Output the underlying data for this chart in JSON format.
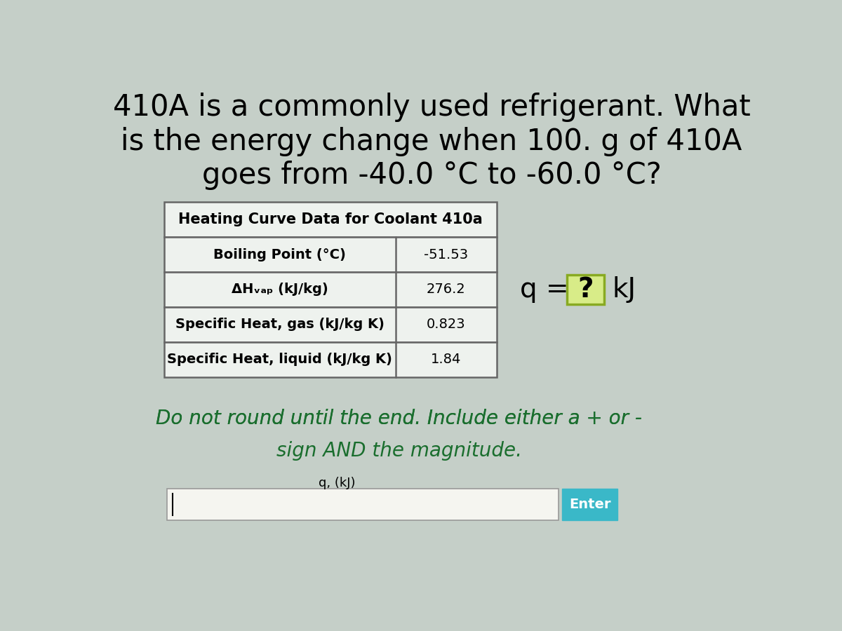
{
  "bg_color": "#c5cfc8",
  "title_line1": "410A is a commonly used refrigerant. What",
  "title_line2": "is the energy change when 100. g of 410A",
  "title_line3": "goes from -40.0 °C to -60.0 °C?",
  "table_title": "Heating Curve Data for Coolant 410a",
  "table_rows": [
    [
      "Boiling Point (°C)",
      "-51.53"
    ],
    [
      "ΔHᵥₐₚ (kJ/kg)",
      "276.2"
    ],
    [
      "Specific Heat, gas (kJ/kg K)",
      "0.823"
    ],
    [
      "Specific Heat, liquid (kJ/kg K)",
      "1.84"
    ]
  ],
  "q_label": "q = ",
  "q_box_text": "?",
  "q_unit": "kJ",
  "note_line1a": "Do not round until the end. Include either a ",
  "note_plus": "+",
  "note_line1b": " or -",
  "note_line2": "sign AND the magnitude.",
  "input_label": "q, (kJ)",
  "enter_btn_text": "Enter",
  "enter_btn_color": "#3ab8c8",
  "note_color": "#1a6e2e",
  "plus_color": "#cc2200",
  "title_color": "#000000",
  "table_header_color": "#000000",
  "table_bg": "#eef2ee",
  "table_border_color": "#666666",
  "q_box_border": "#88aa22",
  "q_box_bg": "#d8ec88"
}
